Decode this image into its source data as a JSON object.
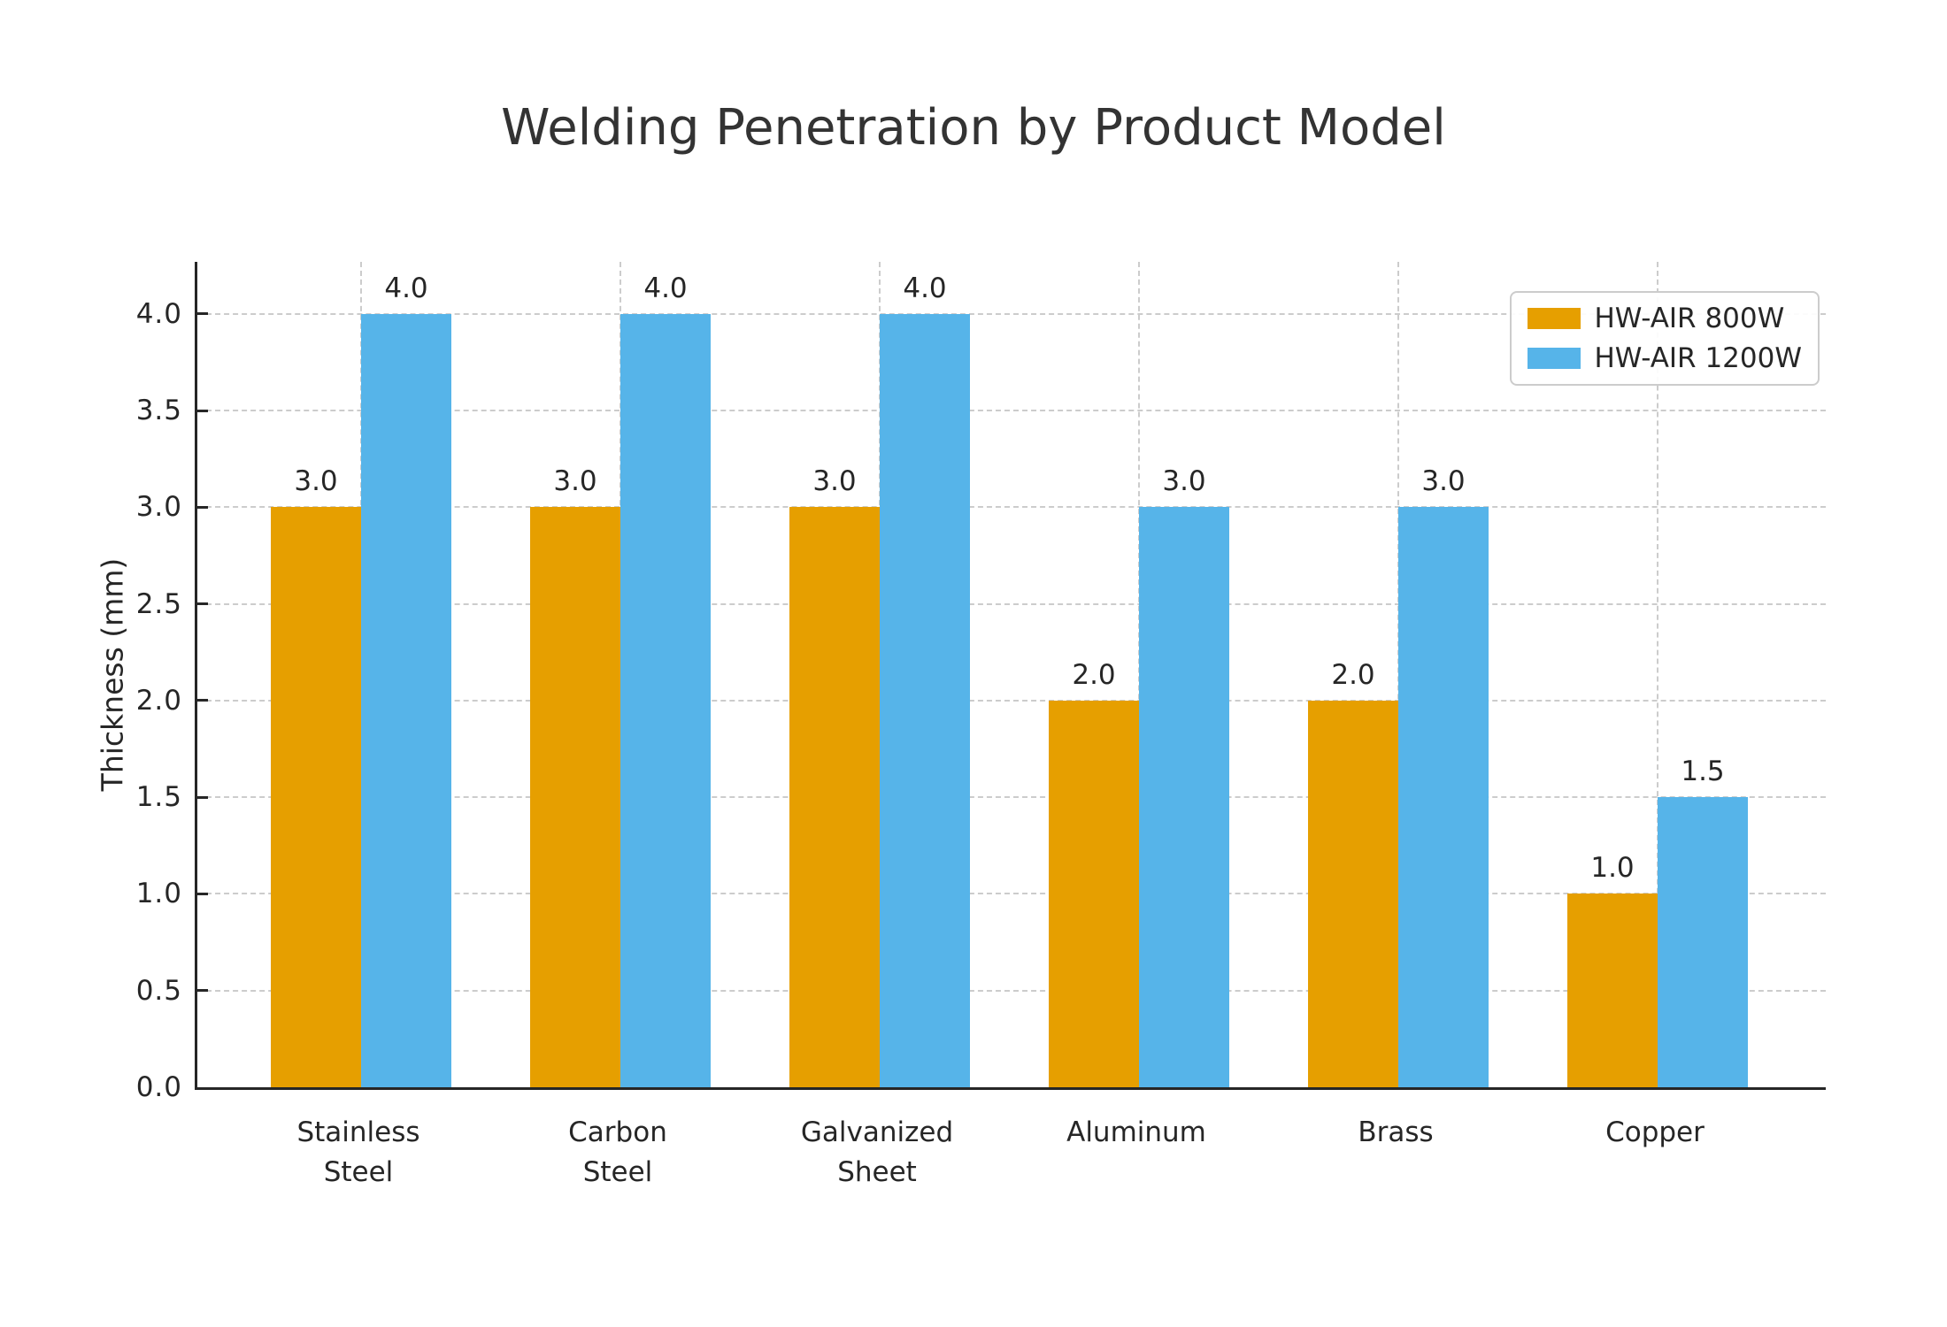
{
  "chart_data": {
    "type": "bar",
    "title": "Welding Penetration by Product Model",
    "xlabel": "",
    "ylabel": "Thickness (mm)",
    "categories": [
      "Stainless Steel",
      "Carbon Steel",
      "Galvanized Sheet",
      "Aluminum",
      "Brass",
      "Copper"
    ],
    "category_label_lines": [
      [
        "Stainless",
        "Steel"
      ],
      [
        "Carbon",
        "Steel"
      ],
      [
        "Galvanized",
        "Sheet"
      ],
      [
        "Aluminum"
      ],
      [
        "Brass"
      ],
      [
        "Copper"
      ]
    ],
    "series": [
      {
        "name": "HW-AIR 800W",
        "color": "#E69F00",
        "values": [
          3.0,
          3.0,
          3.0,
          2.0,
          2.0,
          1.0
        ]
      },
      {
        "name": "HW-AIR 1200W",
        "color": "#56B4E9",
        "values": [
          4.0,
          4.0,
          4.0,
          3.0,
          3.0,
          1.5
        ]
      }
    ],
    "yticks": [
      0.0,
      0.5,
      1.0,
      1.5,
      2.0,
      2.5,
      3.0,
      3.5,
      4.0
    ],
    "ylim": [
      0,
      4.27
    ],
    "value_label_format": "one-decimal",
    "grid": {
      "horizontal": true,
      "vertical_at_categories": true,
      "style": "dashed",
      "color": "#CCCCCC"
    },
    "legend": {
      "position": "upper-right",
      "entries": [
        "HW-AIR 800W",
        "HW-AIR 1200W"
      ]
    }
  },
  "colors": {
    "background": "#FFFFFF",
    "axis_spine": "#262626",
    "tick_text": "#262626",
    "title_text": "#333333",
    "grid_line": "#CCCCCC",
    "legend_border": "#CCCCCC",
    "series_800w": "#E69F00",
    "series_1200w": "#56B4E9"
  }
}
